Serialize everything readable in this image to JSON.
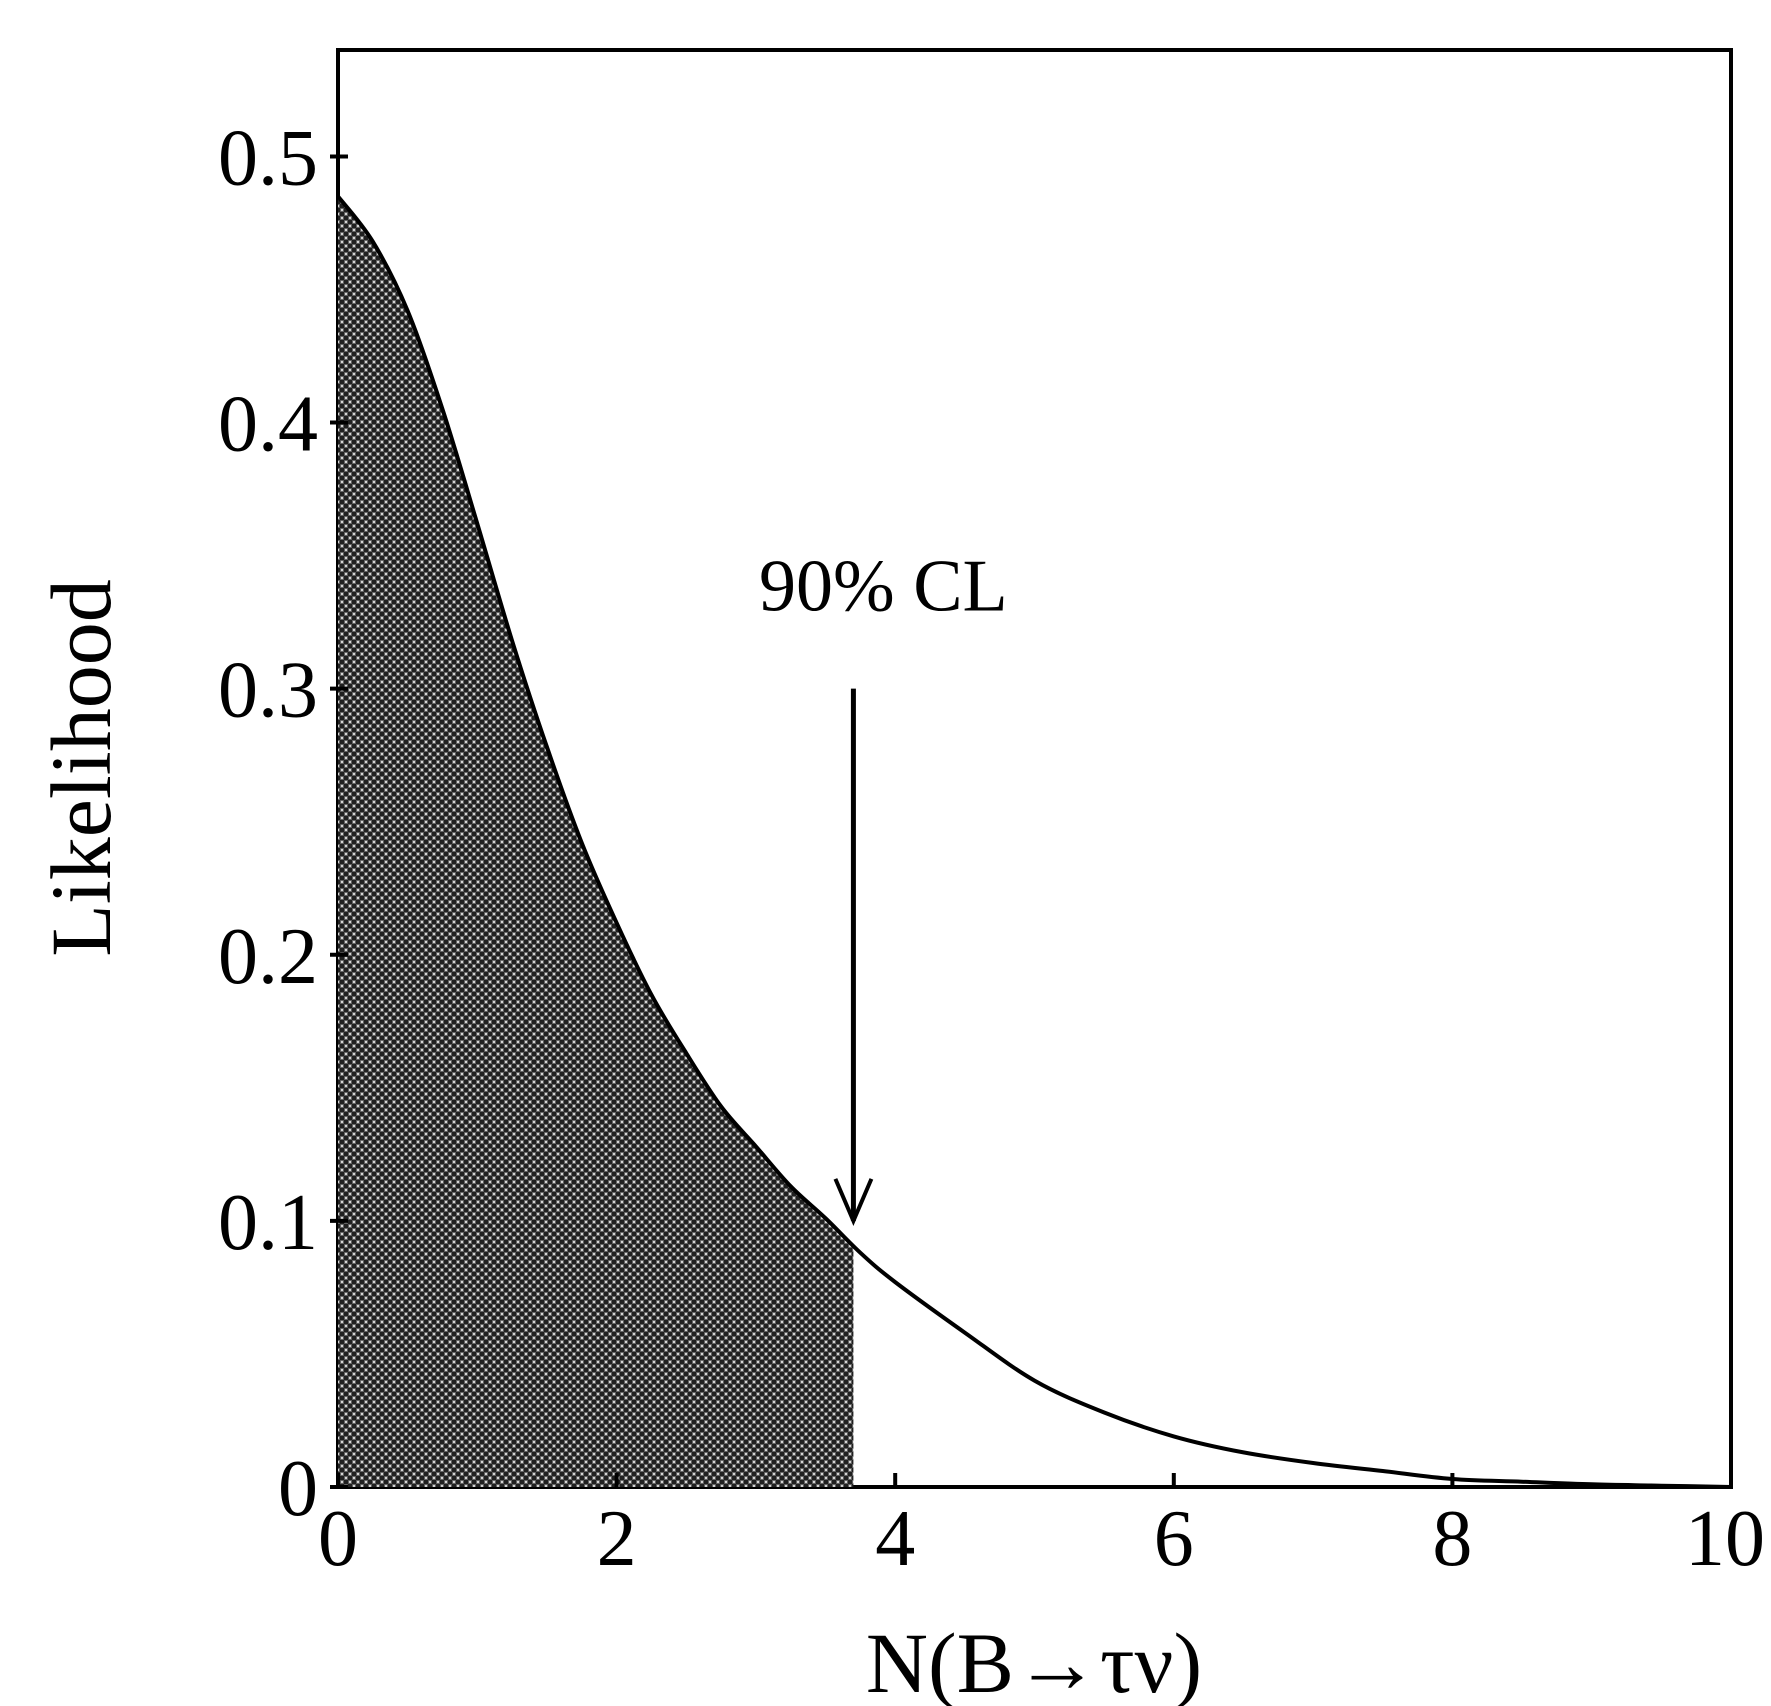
{
  "chart_data": {
    "type": "area",
    "title": "",
    "xlabel": "N(B→τν)",
    "ylabel": "Likelihood",
    "xlim": [
      0,
      10
    ],
    "ylim": [
      0,
      0.54
    ],
    "xticks": [
      0,
      2,
      4,
      6,
      8,
      10
    ],
    "xtick_labels": [
      "0",
      "2",
      "4",
      "6",
      "8",
      "10"
    ],
    "yticks": [
      0,
      0.1,
      0.2,
      0.3,
      0.4,
      0.5
    ],
    "ytick_labels": [
      "0",
      "0.1",
      "0.2",
      "0.3",
      "0.4",
      "0.5"
    ],
    "grid": false,
    "legend": "none",
    "x": [
      0,
      0.25,
      0.5,
      0.75,
      1.0,
      1.25,
      1.5,
      1.75,
      2.0,
      2.25,
      2.5,
      2.75,
      3.0,
      3.25,
      3.5,
      3.75,
      4.0,
      4.5,
      5.0,
      5.5,
      6.0,
      6.5,
      7.0,
      7.5,
      8.0,
      8.5,
      9.0,
      9.5,
      10.0
    ],
    "series": [
      {
        "values": [
          0.485,
          0.468,
          0.442,
          0.405,
          0.362,
          0.318,
          0.278,
          0.242,
          0.212,
          0.185,
          0.163,
          0.143,
          0.128,
          0.113,
          0.101,
          0.088,
          0.077,
          0.058,
          0.04,
          0.028,
          0.019,
          0.013,
          0.009,
          0.006,
          0.003,
          0.002,
          0.001,
          0.0005,
          0.0
        ]
      }
    ],
    "shaded_region": {
      "x_from": 0,
      "x_to": 3.7,
      "fill": "#555555"
    },
    "annotations": [
      {
        "text": "90% CL",
        "arrow_x": 3.7,
        "arrow_y_top": 0.3,
        "arrow_y_bottom": 0.1
      }
    ],
    "colors": {
      "line": "#000000",
      "axes": "#000000",
      "background": "#ffffff"
    }
  }
}
